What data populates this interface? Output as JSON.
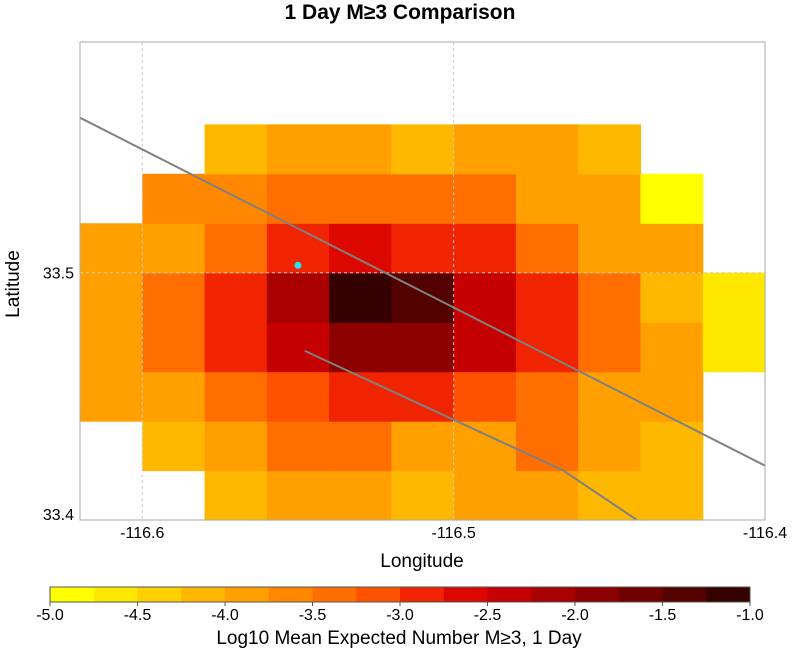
{
  "chart_data": {
    "type": "heatmap",
    "title": "1 Day M≥3 Comparison",
    "xlabel": "Longitude",
    "ylabel": "Latitude",
    "xlim": [
      -116.62,
      -116.4
    ],
    "ylim": [
      33.4,
      33.5933
    ],
    "x_ticks": [
      {
        "value": -116.6,
        "label": "-116.6"
      },
      {
        "value": -116.5,
        "label": "-116.5"
      },
      {
        "value": -116.4,
        "label": "-116.4"
      }
    ],
    "y_ticks": [
      {
        "value": 33.5,
        "label": "33.5"
      },
      {
        "value": 33.4,
        "label": "33.4"
      }
    ],
    "grid": true,
    "cell_size_deg": 0.02,
    "grid_origin": {
      "lon": -116.61,
      "lat": 33.41
    },
    "cells": [
      [
        null,
        null,
        -4.1,
        -3.8,
        -3.8,
        -4.1,
        -3.8,
        -3.8,
        -4.1,
        -4.2,
        null
      ],
      [
        null,
        -4.2,
        -3.8,
        -3.5,
        -3.5,
        -3.8,
        -3.8,
        -3.5,
        -3.8,
        -4.2,
        null
      ],
      [
        -4.0,
        -3.8,
        -3.5,
        -3.2,
        -3.0,
        -2.9,
        -3.2,
        -3.5,
        -3.8,
        -4.0,
        null
      ],
      [
        -3.8,
        -3.5,
        -3.0,
        -2.4,
        -1.9,
        -1.9,
        -2.4,
        -3.0,
        -3.5,
        -3.8,
        -4.6
      ],
      [
        -3.8,
        -3.5,
        -3.0,
        -2.2,
        -1.1,
        -1.5,
        -2.4,
        -3.0,
        -3.5,
        -4.2,
        -4.6
      ],
      [
        -4.0,
        -3.8,
        -3.3,
        -2.9,
        -2.7,
        -2.8,
        -3.0,
        -3.4,
        -3.8,
        -4.0,
        null
      ],
      [
        null,
        -3.6,
        -3.6,
        -3.4,
        -3.4,
        -3.4,
        -3.4,
        -3.8,
        -3.8,
        -4.9,
        null
      ],
      [
        null,
        null,
        -4.1,
        -3.8,
        -3.8,
        -4.1,
        -3.8,
        -3.8,
        -4.1,
        null,
        null
      ]
    ],
    "marker": {
      "lon": -116.55,
      "lat": 33.503,
      "color": "#22e5f5"
    },
    "faults": [
      [
        [
          -116.62,
          33.5627
        ],
        [
          -116.4,
          33.422
        ]
      ],
      [
        [
          -116.5478,
          33.4684
        ],
        [
          -116.4649,
          33.4201
        ],
        [
          -116.4411,
          33.4
        ]
      ]
    ],
    "colorbar": {
      "label": "Log10 Mean Expected Number M≥3, 1 Day",
      "min": -5.0,
      "max": -1.0,
      "tick_labels": [
        "-5.0",
        "-4.5",
        "-4.0",
        "-3.5",
        "-3.0",
        "-2.5",
        "-2.0",
        "-1.5",
        "-1.0"
      ],
      "colors": [
        "#ffff00",
        "#ffe800",
        "#ffd000",
        "#ffb800",
        "#ffa000",
        "#ff8800",
        "#ff6e00",
        "#ff5200",
        "#f02400",
        "#dc0800",
        "#c40000",
        "#a80000",
        "#8c0000",
        "#700000",
        "#520000",
        "#340000"
      ]
    }
  }
}
